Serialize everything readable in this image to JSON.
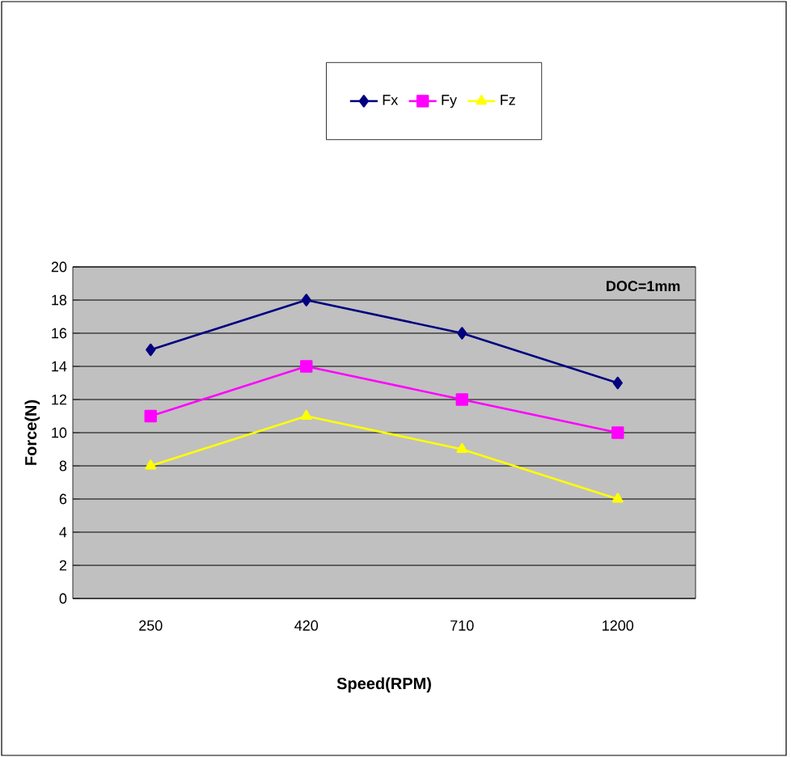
{
  "chart_data": {
    "type": "line",
    "xlabel": "Speed(RPM)",
    "ylabel": "Force(N)",
    "categories": [
      "250",
      "420",
      "710",
      "1200"
    ],
    "series": [
      {
        "name": "Fx",
        "color": "#000080",
        "marker": "diamond",
        "values": [
          15,
          18,
          16,
          13
        ]
      },
      {
        "name": "Fy",
        "color": "#ff00ff",
        "marker": "square",
        "values": [
          11,
          14,
          12,
          10
        ]
      },
      {
        "name": "Fz",
        "color": "#ffff00",
        "marker": "triangle",
        "values": [
          8,
          11,
          9,
          6
        ]
      }
    ],
    "ylim": [
      0,
      20
    ],
    "yticks": [
      0,
      2,
      4,
      6,
      8,
      10,
      12,
      14,
      16,
      18,
      20
    ],
    "grid": "y",
    "legend": "top",
    "annotations": [
      "DOC=1mm"
    ]
  }
}
